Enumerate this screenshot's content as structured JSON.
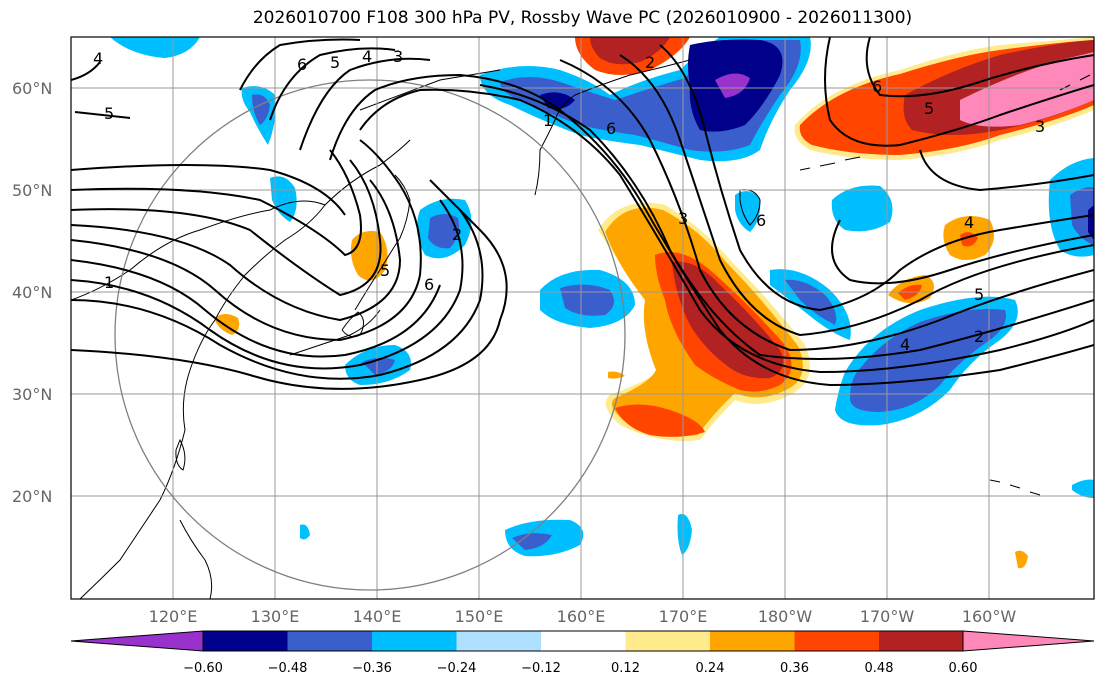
{
  "title": "2026010700 F108 300 hPa PV, Rossby Wave PC (2026010900 - 2026011300)",
  "lat_labels": [
    "60°N",
    "50°N",
    "40°N",
    "30°N",
    "20°N"
  ],
  "lon_labels": [
    "120°E",
    "130°E",
    "140°E",
    "150°E",
    "160°E",
    "170°E",
    "180°W",
    "170°W",
    "160°W"
  ],
  "contour_labels": [
    "4",
    "5",
    "6",
    "5",
    "4",
    "3",
    "1",
    "2",
    "6",
    "5",
    "1",
    "2",
    "3",
    "6",
    "6",
    "5",
    "6",
    "3",
    "4",
    "5",
    "2",
    "4"
  ],
  "colorbar": {
    "tick_labels": [
      "−0.60",
      "−0.48",
      "−0.36",
      "−0.24",
      "−0.12",
      "0.12",
      "0.24",
      "0.36",
      "0.48",
      "0.60"
    ],
    "colors": [
      "#9932cc",
      "#00008b",
      "#3a5fcd",
      "#00bfff",
      "#b0e0ff",
      "#ffffff",
      "#ffeb8c",
      "#ffa500",
      "#ff4500",
      "#b22222",
      "#ff88bb"
    ]
  }
}
